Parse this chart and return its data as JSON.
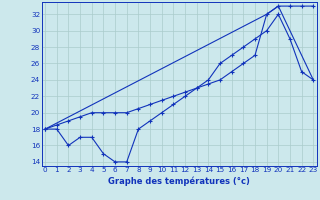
{
  "xlabel": "Graphe des températures (°c)",
  "bg_color": "#cce8ec",
  "grid_color": "#aacccc",
  "line_color": "#1133bb",
  "xlim": [
    -0.3,
    23.3
  ],
  "ylim": [
    13.5,
    33.5
  ],
  "xticks": [
    0,
    1,
    2,
    3,
    4,
    5,
    6,
    7,
    8,
    9,
    10,
    11,
    12,
    13,
    14,
    15,
    16,
    17,
    18,
    19,
    20,
    21,
    22,
    23
  ],
  "yticks": [
    14,
    16,
    18,
    20,
    22,
    24,
    26,
    28,
    30,
    32
  ],
  "line1_x": [
    0,
    1,
    2,
    3,
    4,
    5,
    6,
    7,
    8,
    9,
    10,
    11,
    12,
    13,
    14,
    15,
    16,
    17,
    18,
    19,
    20,
    21,
    22,
    23
  ],
  "line1_y": [
    18,
    18,
    16,
    17,
    17,
    15,
    14,
    14,
    18,
    19,
    20,
    21,
    22,
    23,
    24,
    26,
    27,
    28,
    29,
    30,
    32,
    29,
    25,
    24
  ],
  "line2_x": [
    0,
    1,
    2,
    3,
    4,
    5,
    6,
    7,
    8,
    9,
    10,
    11,
    12,
    13,
    14,
    15,
    16,
    17,
    18,
    19,
    20,
    21,
    22,
    23
  ],
  "line2_y": [
    18,
    18.5,
    19,
    19.5,
    20,
    20,
    20,
    20,
    20.5,
    21,
    21.5,
    22,
    22.5,
    23,
    23.5,
    24,
    25,
    26,
    27,
    32,
    33,
    33,
    33,
    33
  ],
  "line3_x": [
    0,
    19,
    20,
    23
  ],
  "line3_y": [
    18,
    32,
    33,
    24
  ]
}
